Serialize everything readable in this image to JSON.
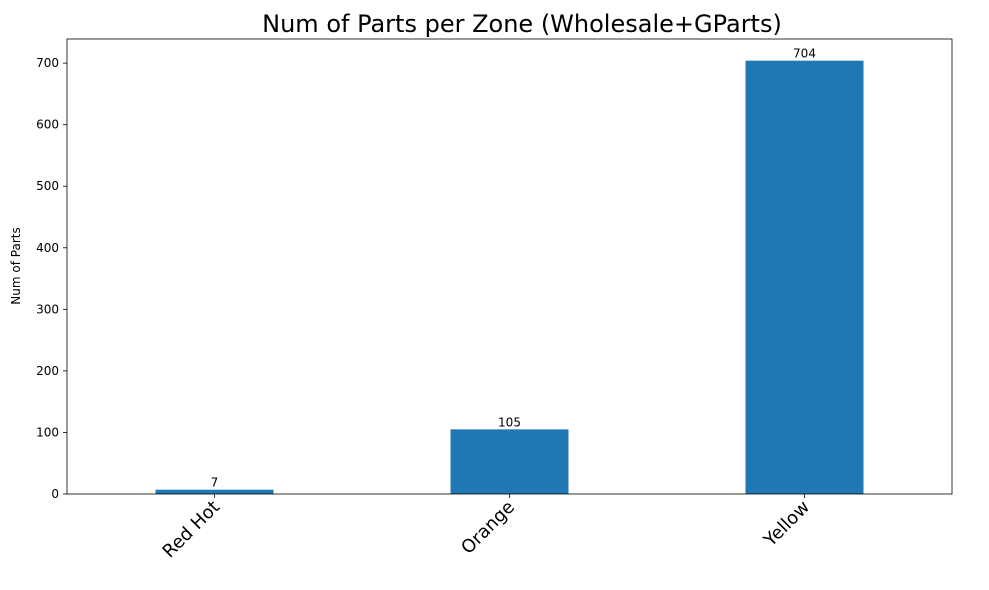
{
  "chart_data": {
    "type": "bar",
    "title": "Num of Parts per Zone (Wholesale+GParts)",
    "xlabel": "",
    "ylabel": "Num of Parts",
    "categories": [
      "Red Hot",
      "Orange",
      "Yellow"
    ],
    "values": [
      7,
      105,
      704
    ],
    "data_labels": [
      "7",
      "105",
      "704"
    ],
    "ylim": [
      0,
      739.2
    ],
    "yticks": [
      0,
      100,
      200,
      300,
      400,
      500,
      600,
      700
    ],
    "bar_color": "#1f77b4",
    "grid": false,
    "legend": "none"
  }
}
